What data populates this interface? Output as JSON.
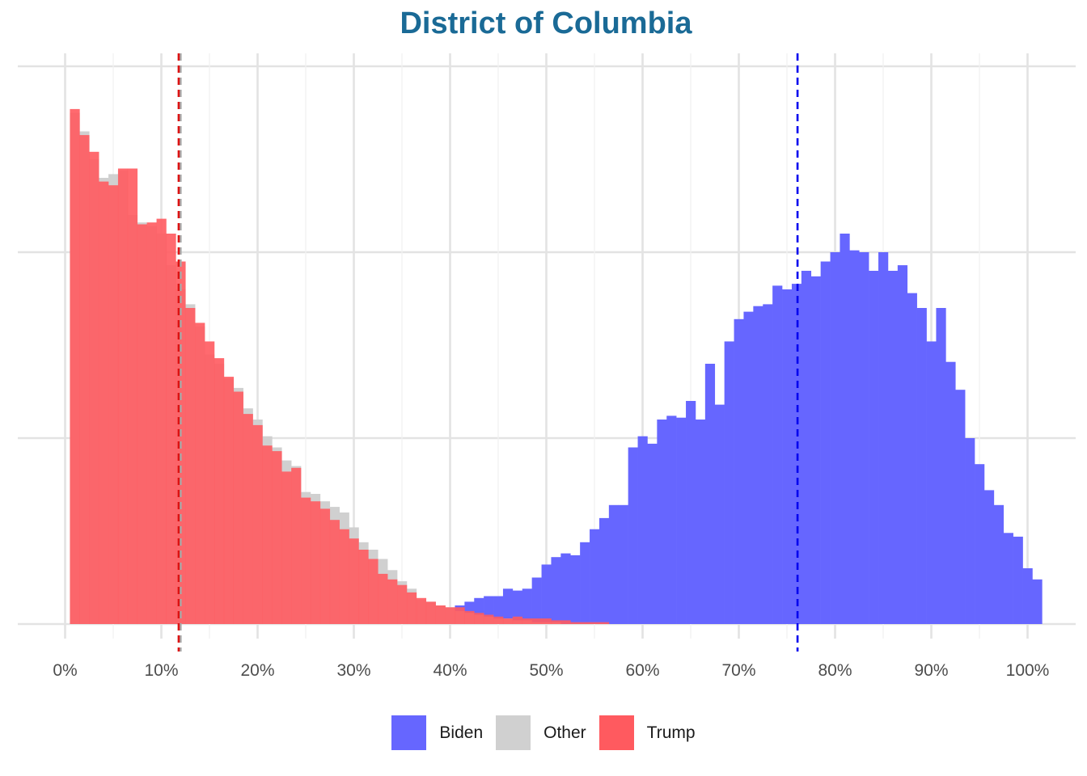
{
  "chart_data": {
    "type": "histogram",
    "title": "District of Columbia",
    "xlabel": "",
    "ylabel": "",
    "xlim": [
      0,
      100
    ],
    "x_ticks": [
      "0%",
      "10%",
      "20%",
      "30%",
      "40%",
      "50%",
      "60%",
      "70%",
      "80%",
      "90%",
      "100%"
    ],
    "y_ticks_labeled": false,
    "grid": true,
    "legend_position": "bottom",
    "bin_width": 1,
    "bin_start": 0.5,
    "series": [
      {
        "name": "Biden",
        "color": "#6666ff",
        "mean_line": 76.1,
        "line_color": "#0000ee",
        "values": [
          0,
          0,
          0,
          0,
          0,
          0,
          0,
          0,
          0,
          0,
          0,
          0,
          0,
          0,
          0,
          0,
          0,
          0,
          0,
          0,
          0,
          0,
          0,
          0,
          0,
          0,
          0,
          0,
          0,
          0,
          0,
          0,
          0,
          0.1,
          0.2,
          0.2,
          0.3,
          0.5,
          0.6,
          0.8,
          1.0,
          1.2,
          1.4,
          1.5,
          1.5,
          1.9,
          1.8,
          1.9,
          2.5,
          3.2,
          3.6,
          3.8,
          3.7,
          4.4,
          5.1,
          5.7,
          6.4,
          6.4,
          9.5,
          10.1,
          9.7,
          11.0,
          11.2,
          11.1,
          12.0,
          11.0,
          14.0,
          11.8,
          15.2,
          16.4,
          16.8,
          17.1,
          17.2,
          18.2,
          18.0,
          18.3,
          19.0,
          18.7,
          19.5,
          20.0,
          21.0,
          20.1,
          20.0,
          19.0,
          20.0,
          19.0,
          19.3,
          17.8,
          17.0,
          15.2,
          17.0,
          14.1,
          12.6,
          10.0,
          8.6,
          7.2,
          6.4,
          4.9,
          4.7,
          3.0,
          2.4
        ]
      },
      {
        "name": "Other",
        "color": "#d0d0d0",
        "mean_line": 12.0,
        "line_color": "#aaaaaa",
        "values": [
          27.5,
          26.5,
          25.0,
          24.0,
          24.2,
          24.4,
          22.0,
          21.6,
          21.4,
          21.0,
          19.3,
          18.0,
          17.2,
          16.0,
          14.5,
          14.0,
          13.2,
          12.7,
          11.6,
          11.0,
          10.1,
          9.5,
          8.8,
          8.5,
          7.1,
          7.0,
          6.6,
          6.3,
          6.0,
          5.2,
          4.4,
          4.0,
          3.5,
          2.9,
          2.3,
          1.9,
          1.3,
          1.2,
          1.0,
          0.9,
          0.7,
          0.6,
          0.5,
          0.4,
          0.3,
          0.3,
          0.2,
          0.2,
          0.1,
          0.1,
          0.1,
          0,
          0,
          0,
          0,
          0,
          0,
          0,
          0,
          0,
          0,
          0,
          0,
          0,
          0,
          0,
          0,
          0,
          0,
          0,
          0,
          0,
          0,
          0,
          0,
          0,
          0,
          0,
          0,
          0,
          0,
          0,
          0,
          0,
          0,
          0,
          0,
          0,
          0,
          0,
          0,
          0,
          0,
          0,
          0,
          0,
          0,
          0,
          0
        ]
      },
      {
        "name": "Trump",
        "color": "#ff5a5f",
        "mean_line": 11.8,
        "line_color": "#dd1111",
        "values": [
          27.7,
          26.3,
          25.4,
          23.8,
          23.6,
          24.5,
          24.5,
          21.5,
          21.6,
          21.8,
          21.0,
          19.5,
          17.0,
          16.2,
          15.2,
          14.3,
          13.3,
          12.5,
          11.3,
          10.7,
          9.6,
          9.3,
          8.2,
          8.4,
          6.8,
          6.6,
          6.2,
          5.6,
          5.1,
          4.6,
          4.0,
          3.5,
          2.7,
          2.4,
          2.1,
          1.7,
          1.4,
          1.2,
          1.0,
          0.9,
          0.9,
          0.7,
          0.6,
          0.5,
          0.4,
          0.3,
          0.4,
          0.3,
          0.3,
          0.3,
          0.2,
          0.2,
          0.1,
          0.1,
          0.1,
          0.1,
          0,
          0,
          0,
          0,
          0,
          0,
          0,
          0,
          0,
          0,
          0,
          0,
          0,
          0,
          0,
          0,
          0,
          0,
          0,
          0,
          0,
          0,
          0,
          0,
          0,
          0,
          0,
          0,
          0,
          0,
          0,
          0,
          0,
          0,
          0,
          0,
          0,
          0,
          0,
          0,
          0,
          0,
          0,
          0,
          0
        ]
      }
    ]
  }
}
